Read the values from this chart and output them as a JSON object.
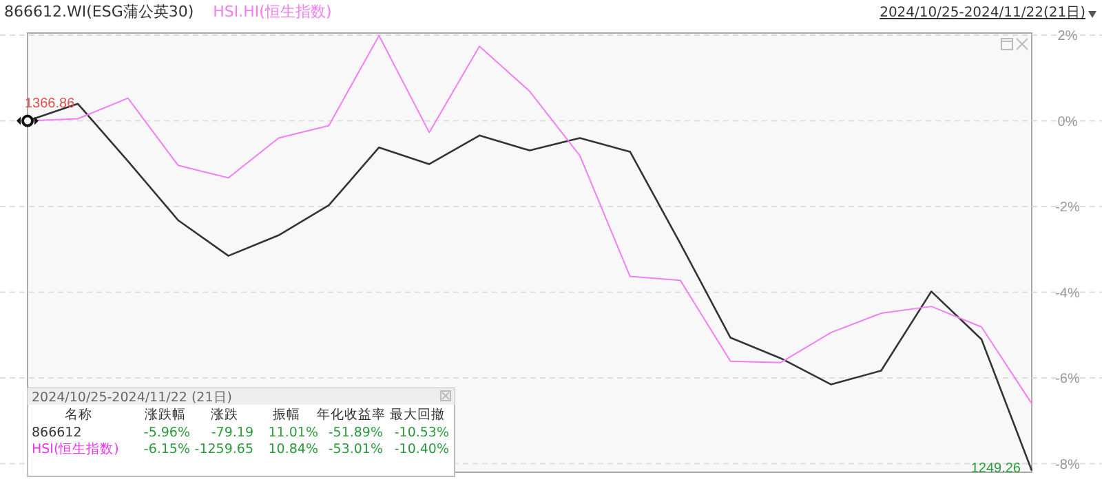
{
  "chart_data": [
    {
      "type": "line",
      "title": "2024/10/25-2024/11/22(21日)",
      "categories": [
        null,
        null,
        null,
        null,
        null,
        null,
        null,
        null,
        null,
        null,
        null,
        null,
        null,
        null,
        null,
        null,
        null,
        null,
        null,
        null,
        null
      ],
      "series": [
        {
          "name": "866612.WI(ESG蒲公英30)",
          "color": "#333333",
          "values": [
            0,
            0.4,
            -0.94,
            -2.32,
            -3.15,
            -2.67,
            -1.97,
            -0.62,
            -1.01,
            -0.34,
            -0.69,
            -0.4,
            -0.72,
            -2.86,
            -5.06,
            -5.54,
            -6.15,
            -5.83,
            -3.98,
            -5.1,
            -8.16
          ]
        },
        {
          "name": "HSI.HI(恒生指数)",
          "color": "#f27ef2",
          "values": [
            0,
            0.05,
            0.53,
            -1.04,
            -1.33,
            -0.4,
            -0.11,
            1.99,
            -0.27,
            1.74,
            0.69,
            -0.81,
            -3.63,
            -3.72,
            -5.61,
            -5.64,
            -4.94,
            -4.49,
            -4.33,
            -4.81,
            -6.6
          ]
        }
      ],
      "ylim": [
        -8.2,
        2.05
      ],
      "yticks": [
        {
          "value": 2,
          "label": "2%"
        },
        {
          "value": 0,
          "label": "0%"
        },
        {
          "value": -2,
          "label": "-2%"
        },
        {
          "value": -4,
          "label": "-4%"
        },
        {
          "value": -6,
          "label": "-6%"
        },
        {
          "value": -8,
          "label": "-8%"
        }
      ],
      "grid": "y",
      "legend": "top left",
      "marker": "none",
      "line_style": "solid",
      "annotations": [
        "1366.86",
        "1249.26"
      ]
    },
    {
      "type": "other",
      "title": "2024/10/25-2024/11/22 (21日)",
      "categories": [
        "名称",
        "涨跌幅",
        "涨跌",
        "振幅",
        "年化收益率",
        "最大回撤"
      ],
      "y_categories": [
        "866612",
        "HSI(恒生指数)"
      ],
      "cell_labels": [
        [
          "-5.96%",
          "-79.19",
          "11.01%",
          "-51.89%",
          "-10.53%"
        ],
        [
          "-6.15%",
          "-1259.65",
          "10.84%",
          "-53.01%",
          "-10.40%"
        ]
      ]
    }
  ]
}
